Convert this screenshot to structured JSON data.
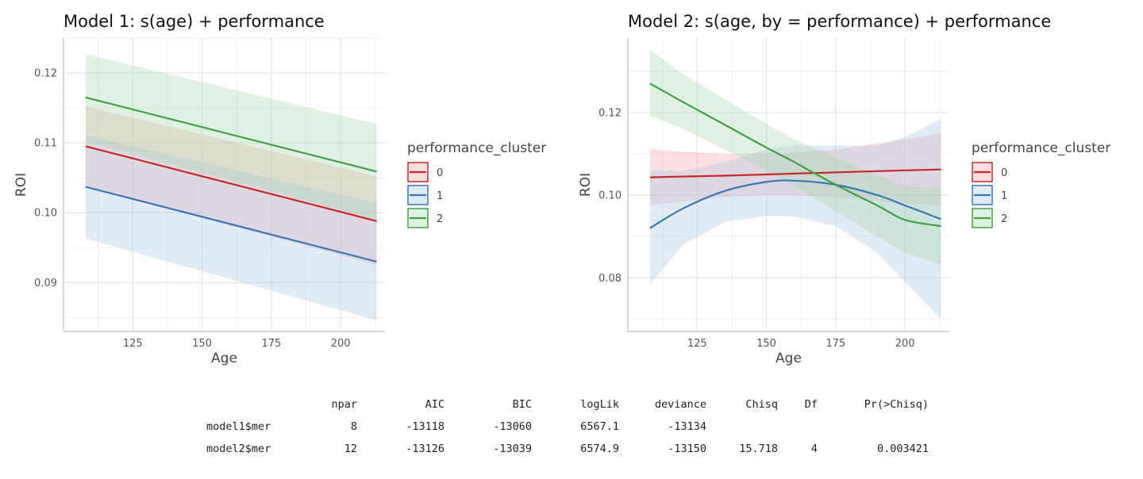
{
  "chart_data": [
    {
      "type": "line",
      "title": "Model 1: s(age) + performance",
      "xlabel": "Age",
      "ylabel": "ROI",
      "xlim": [
        100,
        216
      ],
      "ylim": [
        0.083,
        0.125
      ],
      "xticks": [
        125,
        150,
        175,
        200
      ],
      "yticks": [
        0.09,
        0.1,
        0.11,
        0.12
      ],
      "grid": true,
      "legend": {
        "title": "performance_cluster",
        "position": "right",
        "entries": [
          "0",
          "1",
          "2"
        ]
      },
      "x": [
        108,
        213
      ],
      "series": [
        {
          "name": "0",
          "color": "#c62828",
          "fill": "#f4a6aa",
          "values": [
            0.1095,
            0.0988
          ],
          "lower": [
            0.1038,
            0.0925
          ],
          "upper": [
            0.1152,
            0.1052
          ]
        },
        {
          "name": "1",
          "color": "#3a78b4",
          "fill": "#a9c6e4",
          "values": [
            0.1037,
            0.093
          ],
          "lower": [
            0.0963,
            0.0846
          ],
          "upper": [
            0.1111,
            0.1014
          ]
        },
        {
          "name": "2",
          "color": "#43a047",
          "fill": "#a6d8a8",
          "values": [
            0.1165,
            0.1059
          ],
          "lower": [
            0.1102,
            0.099
          ],
          "upper": [
            0.1227,
            0.1127
          ]
        }
      ]
    },
    {
      "type": "line",
      "title": "Model 2: s(age, by = performance) + performance",
      "xlabel": "Age",
      "ylabel": "ROI",
      "xlim": [
        100,
        216
      ],
      "ylim": [
        0.067,
        0.138
      ],
      "xticks": [
        125,
        150,
        175,
        200
      ],
      "yticks": [
        0.08,
        0.1,
        0.12
      ],
      "grid": true,
      "legend": {
        "title": "performance_cluster",
        "position": "right",
        "entries": [
          "0",
          "1",
          "2"
        ]
      },
      "x": [
        108,
        120,
        135,
        150,
        160,
        175,
        190,
        200,
        213
      ],
      "series": [
        {
          "name": "0",
          "color": "#c62828",
          "fill": "#f4a6aa",
          "values": [
            0.1043,
            0.1045,
            0.1047,
            0.105,
            0.1052,
            0.1055,
            0.1058,
            0.106,
            0.1062
          ],
          "lower": [
            0.0975,
            0.0985,
            0.0995,
            0.1,
            0.1,
            0.0995,
            0.0985,
            0.098,
            0.0975
          ],
          "upper": [
            0.1112,
            0.1105,
            0.11,
            0.11,
            0.1103,
            0.111,
            0.1125,
            0.1135,
            0.115
          ]
        },
        {
          "name": "1",
          "color": "#3a78b4",
          "fill": "#a9c6e4",
          "values": [
            0.092,
            0.0968,
            0.101,
            0.1032,
            0.1035,
            0.1025,
            0.1,
            0.0975,
            0.0942
          ],
          "lower": [
            0.0785,
            0.088,
            0.0935,
            0.095,
            0.0948,
            0.0925,
            0.086,
            0.079,
            0.07
          ],
          "upper": [
            0.106,
            0.1058,
            0.108,
            0.111,
            0.112,
            0.112,
            0.112,
            0.114,
            0.1185
          ]
        },
        {
          "name": "2",
          "color": "#43a047",
          "fill": "#a6d8a8",
          "values": [
            0.127,
            0.1225,
            0.117,
            0.1115,
            0.108,
            0.1025,
            0.0975,
            0.094,
            0.0925
          ],
          "lower": [
            0.1192,
            0.116,
            0.111,
            0.106,
            0.1022,
            0.096,
            0.09,
            0.086,
            0.0832
          ],
          "upper": [
            0.1352,
            0.1292,
            0.1232,
            0.1172,
            0.1135,
            0.109,
            0.105,
            0.102,
            0.1018
          ]
        }
      ]
    }
  ],
  "anova": {
    "columns": [
      "npar",
      "AIC",
      "BIC",
      "logLik",
      "deviance",
      "Chisq",
      "Df",
      "Pr(>Chisq)"
    ],
    "rows": [
      {
        "name": "model1$mer",
        "values": [
          "8",
          "-13118",
          "-13060",
          "6567.1",
          "-13134",
          "",
          "",
          ""
        ]
      },
      {
        "name": "model2$mer",
        "values": [
          "12",
          "-13126",
          "-13039",
          "6574.9",
          "-13150",
          "15.718",
          "4",
          "0.003421"
        ]
      }
    ]
  }
}
